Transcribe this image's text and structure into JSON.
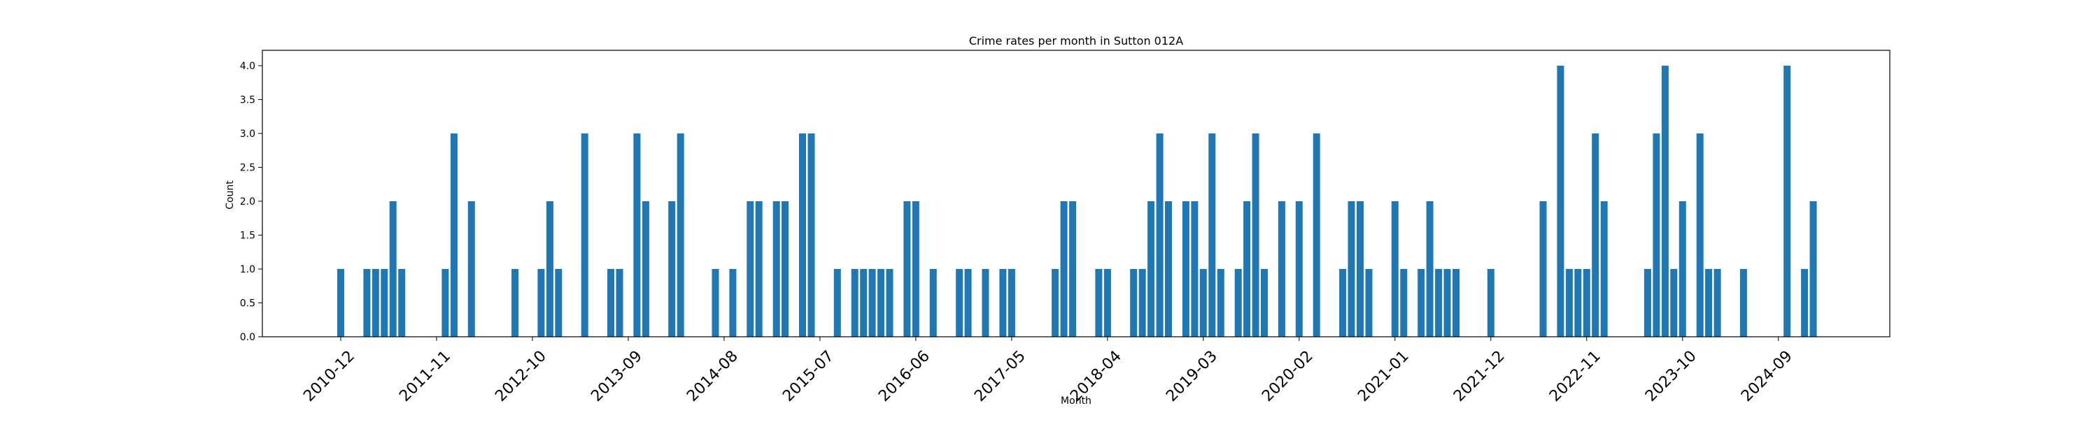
{
  "chart_data": {
    "type": "bar",
    "title": "Crime rates per month in Sutton 012A",
    "xlabel": "Month",
    "ylabel": "Count",
    "ylim": [
      0,
      4.2
    ],
    "yticks": [
      "0.0",
      "0.5",
      "1.0",
      "1.5",
      "2.0",
      "2.5",
      "3.0",
      "3.5",
      "4.0"
    ],
    "xticks": [
      "2010-12",
      "2011-11",
      "2012-10",
      "2013-09",
      "2014-08",
      "2015-07",
      "2016-06",
      "2017-05",
      "2018-04",
      "2019-03",
      "2020-02",
      "2021-01",
      "2021-12",
      "2022-11",
      "2023-10",
      "2024-09"
    ],
    "grid": false,
    "bar_color": "#1f77b4",
    "points": [
      {
        "x": "2010-12",
        "y": 1
      },
      {
        "x": "2011-03",
        "y": 1
      },
      {
        "x": "2011-04",
        "y": 1
      },
      {
        "x": "2011-05",
        "y": 1
      },
      {
        "x": "2011-06",
        "y": 2
      },
      {
        "x": "2011-07",
        "y": 1
      },
      {
        "x": "2011-12",
        "y": 1
      },
      {
        "x": "2012-01",
        "y": 3
      },
      {
        "x": "2012-03",
        "y": 2
      },
      {
        "x": "2012-08",
        "y": 1
      },
      {
        "x": "2012-11",
        "y": 1
      },
      {
        "x": "2012-12",
        "y": 2
      },
      {
        "x": "2013-01",
        "y": 1
      },
      {
        "x": "2013-04",
        "y": 3
      },
      {
        "x": "2013-07",
        "y": 1
      },
      {
        "x": "2013-08",
        "y": 1
      },
      {
        "x": "2013-10",
        "y": 3
      },
      {
        "x": "2013-11",
        "y": 2
      },
      {
        "x": "2014-02",
        "y": 2
      },
      {
        "x": "2014-03",
        "y": 3
      },
      {
        "x": "2014-07",
        "y": 1
      },
      {
        "x": "2014-09",
        "y": 1
      },
      {
        "x": "2014-11",
        "y": 2
      },
      {
        "x": "2014-12",
        "y": 2
      },
      {
        "x": "2015-02",
        "y": 2
      },
      {
        "x": "2015-03",
        "y": 2
      },
      {
        "x": "2015-05",
        "y": 3
      },
      {
        "x": "2015-06",
        "y": 3
      },
      {
        "x": "2015-09",
        "y": 1
      },
      {
        "x": "2015-11",
        "y": 1
      },
      {
        "x": "2015-12",
        "y": 1
      },
      {
        "x": "2016-01",
        "y": 1
      },
      {
        "x": "2016-02",
        "y": 1
      },
      {
        "x": "2016-03",
        "y": 1
      },
      {
        "x": "2016-05",
        "y": 2
      },
      {
        "x": "2016-06",
        "y": 2
      },
      {
        "x": "2016-08",
        "y": 1
      },
      {
        "x": "2016-11",
        "y": 1
      },
      {
        "x": "2016-12",
        "y": 1
      },
      {
        "x": "2017-02",
        "y": 1
      },
      {
        "x": "2017-04",
        "y": 1
      },
      {
        "x": "2017-05",
        "y": 1
      },
      {
        "x": "2017-10",
        "y": 1
      },
      {
        "x": "2017-11",
        "y": 2
      },
      {
        "x": "2017-12",
        "y": 2
      },
      {
        "x": "2018-03",
        "y": 1
      },
      {
        "x": "2018-04",
        "y": 1
      },
      {
        "x": "2018-07",
        "y": 1
      },
      {
        "x": "2018-08",
        "y": 1
      },
      {
        "x": "2018-09",
        "y": 2
      },
      {
        "x": "2018-10",
        "y": 3
      },
      {
        "x": "2018-11",
        "y": 2
      },
      {
        "x": "2019-01",
        "y": 2
      },
      {
        "x": "2019-02",
        "y": 2
      },
      {
        "x": "2019-03",
        "y": 1
      },
      {
        "x": "2019-04",
        "y": 3
      },
      {
        "x": "2019-05",
        "y": 1
      },
      {
        "x": "2019-07",
        "y": 1
      },
      {
        "x": "2019-08",
        "y": 2
      },
      {
        "x": "2019-09",
        "y": 3
      },
      {
        "x": "2019-10",
        "y": 1
      },
      {
        "x": "2019-12",
        "y": 2
      },
      {
        "x": "2020-02",
        "y": 2
      },
      {
        "x": "2020-04",
        "y": 3
      },
      {
        "x": "2020-07",
        "y": 1
      },
      {
        "x": "2020-08",
        "y": 2
      },
      {
        "x": "2020-09",
        "y": 2
      },
      {
        "x": "2020-10",
        "y": 1
      },
      {
        "x": "2021-01",
        "y": 2
      },
      {
        "x": "2021-02",
        "y": 1
      },
      {
        "x": "2021-04",
        "y": 1
      },
      {
        "x": "2021-05",
        "y": 2
      },
      {
        "x": "2021-06",
        "y": 1
      },
      {
        "x": "2021-07",
        "y": 1
      },
      {
        "x": "2021-08",
        "y": 1
      },
      {
        "x": "2021-12",
        "y": 1
      },
      {
        "x": "2022-06",
        "y": 2
      },
      {
        "x": "2022-08",
        "y": 4
      },
      {
        "x": "2022-09",
        "y": 1
      },
      {
        "x": "2022-10",
        "y": 1
      },
      {
        "x": "2022-11",
        "y": 1
      },
      {
        "x": "2022-12",
        "y": 3
      },
      {
        "x": "2023-01",
        "y": 2
      },
      {
        "x": "2023-06",
        "y": 1
      },
      {
        "x": "2023-07",
        "y": 3
      },
      {
        "x": "2023-08",
        "y": 4
      },
      {
        "x": "2023-09",
        "y": 1
      },
      {
        "x": "2023-10",
        "y": 2
      },
      {
        "x": "2023-12",
        "y": 3
      },
      {
        "x": "2024-01",
        "y": 1
      },
      {
        "x": "2024-02",
        "y": 1
      },
      {
        "x": "2024-05",
        "y": 1
      },
      {
        "x": "2024-10",
        "y": 4
      },
      {
        "x": "2024-12",
        "y": 1
      },
      {
        "x": "2025-01",
        "y": 2
      }
    ]
  }
}
